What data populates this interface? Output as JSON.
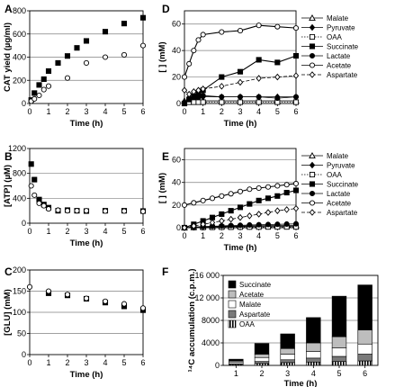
{
  "chart_data": [
    {
      "panel": "A",
      "type": "scatter",
      "xlabel": "Time (h)",
      "ylabel": "CAT yield (µg/ml)",
      "xlim": [
        0,
        6
      ],
      "ylim": [
        0,
        800
      ],
      "xticks": [
        0,
        1,
        2,
        3,
        4,
        5,
        6
      ],
      "yticks": [
        0,
        200,
        400,
        600,
        800
      ],
      "series": [
        {
          "marker": "filled-square",
          "x": [
            0.08,
            0.25,
            0.5,
            0.75,
            1,
            1.5,
            2,
            2.5,
            3,
            4,
            5,
            6
          ],
          "y": [
            30,
            90,
            160,
            210,
            280,
            350,
            410,
            480,
            540,
            620,
            690,
            740
          ]
        },
        {
          "marker": "open-circle",
          "x": [
            0.08,
            0.25,
            0.5,
            0.75,
            1,
            2,
            3,
            4,
            5,
            6
          ],
          "y": [
            20,
            40,
            70,
            120,
            150,
            220,
            350,
            400,
            420,
            500
          ]
        }
      ]
    },
    {
      "panel": "B",
      "type": "scatter",
      "xlabel": "Time (h)",
      "ylabel": "[ATP] (µM)",
      "xlim": [
        0,
        6
      ],
      "ylim": [
        0,
        1200
      ],
      "xticks": [
        0,
        1,
        2,
        3,
        4,
        5,
        6
      ],
      "yticks": [
        0,
        400,
        800,
        1200
      ],
      "series": [
        {
          "marker": "filled-square",
          "x": [
            0.08,
            0.25,
            0.5,
            0.75,
            1,
            1.5,
            2,
            2.5,
            3,
            4,
            5,
            6
          ],
          "y": [
            950,
            700,
            380,
            300,
            250,
            200,
            210,
            200,
            195,
            200,
            200,
            195
          ]
        },
        {
          "marker": "open-circle",
          "x": [
            0.08,
            0.25,
            0.5,
            0.75,
            1,
            1.5,
            2,
            2.5,
            3,
            4,
            5,
            6
          ],
          "y": [
            600,
            450,
            320,
            280,
            230,
            210,
            200,
            200,
            200,
            195,
            195,
            190
          ]
        }
      ]
    },
    {
      "panel": "C",
      "type": "scatter",
      "xlabel": "Time (h)",
      "ylabel": "[GLU] (mM)",
      "xlim": [
        0,
        6
      ],
      "ylim": [
        0,
        200
      ],
      "xticks": [
        0,
        1,
        2,
        3,
        4,
        5,
        6
      ],
      "yticks": [
        0,
        50,
        100,
        150,
        200
      ],
      "series": [
        {
          "marker": "filled-square",
          "x": [
            1,
            2,
            3,
            4,
            5,
            6
          ],
          "y": [
            145,
            140,
            132,
            123,
            114,
            105
          ]
        },
        {
          "marker": "open-circle",
          "x": [
            0,
            1,
            2,
            3,
            4,
            5,
            6
          ],
          "y": [
            160,
            150,
            142,
            133,
            126,
            120,
            110
          ]
        }
      ]
    },
    {
      "panel": "D",
      "type": "line",
      "xlabel": "Time (h)",
      "ylabel": "[ ] (mM)",
      "xlim": [
        0,
        6
      ],
      "ylim": [
        0,
        70
      ],
      "xticks": [
        0,
        1,
        2,
        3,
        4,
        5,
        6
      ],
      "yticks": [
        0,
        20,
        40,
        60
      ],
      "x": [
        0,
        0.25,
        0.5,
        0.75,
        1,
        2,
        3,
        4,
        5,
        6
      ],
      "series": [
        {
          "name": "Malate",
          "marker": "open-triangle",
          "style": "solid",
          "y": [
            2,
            2,
            2,
            2,
            2,
            2,
            2,
            2,
            2,
            2
          ]
        },
        {
          "name": "Pyruvate",
          "marker": "filled-diamond",
          "style": "solid",
          "y": [
            1,
            3,
            4,
            4,
            5,
            5,
            5,
            5,
            5,
            5
          ]
        },
        {
          "name": "OAA",
          "marker": "open-square",
          "style": "dotted",
          "y": [
            0,
            1,
            1,
            1,
            1,
            1,
            1,
            1,
            1,
            1
          ]
        },
        {
          "name": "Succinate",
          "marker": "filled-square",
          "style": "solid",
          "y": [
            0,
            3,
            5,
            8,
            10,
            20,
            24,
            33,
            31,
            36
          ]
        },
        {
          "name": "Lactate",
          "marker": "filled-circle",
          "style": "solid",
          "y": [
            0,
            4,
            6,
            5,
            6,
            5,
            5,
            5,
            4,
            5
          ]
        },
        {
          "name": "Acetate",
          "marker": "open-circle",
          "style": "solid",
          "y": [
            20,
            30,
            40,
            48,
            52,
            54,
            55,
            59,
            58,
            57
          ]
        },
        {
          "name": "Aspartate",
          "marker": "open-diamond",
          "style": "dashed",
          "y": [
            10,
            7,
            9,
            10,
            11,
            13,
            16,
            19,
            20,
            21
          ]
        }
      ]
    },
    {
      "panel": "E",
      "type": "line",
      "xlabel": "Time (h)",
      "ylabel": "[ ] (mM)",
      "xlim": [
        0,
        6
      ],
      "ylim": [
        0,
        70
      ],
      "xticks": [
        0,
        1,
        2,
        3,
        4,
        5,
        6
      ],
      "yticks": [
        0,
        20,
        40,
        60
      ],
      "x": [
        0,
        0.5,
        1,
        1.5,
        2,
        2.5,
        3,
        3.5,
        4,
        4.5,
        5,
        5.5,
        6
      ],
      "series": [
        {
          "name": "Malate",
          "marker": "open-triangle",
          "style": "solid",
          "y": [
            0,
            0.5,
            0.8,
            1,
            1.2,
            1.3,
            1.5,
            1.6,
            1.8,
            1.9,
            2,
            2,
            2
          ]
        },
        {
          "name": "Pyruvate",
          "marker": "filled-diamond",
          "style": "solid",
          "y": [
            0,
            0.3,
            0.5,
            0.7,
            0.8,
            1,
            1,
            1,
            1.1,
            1.1,
            1.2,
            1.2,
            1.2
          ]
        },
        {
          "name": "OAA",
          "marker": "open-square",
          "style": "dotted",
          "y": [
            0,
            0.2,
            0.3,
            0.4,
            0.5,
            0.5,
            0.6,
            0.6,
            0.6,
            0.7,
            0.7,
            0.7,
            0.7
          ]
        },
        {
          "name": "Succinate",
          "marker": "filled-square",
          "style": "solid",
          "y": [
            0,
            3,
            6,
            9,
            12,
            15,
            18,
            21,
            24,
            26,
            28,
            31,
            33
          ]
        },
        {
          "name": "Lactate",
          "marker": "filled-circle",
          "style": "solid",
          "y": [
            0,
            0.5,
            1,
            1.3,
            1.6,
            1.9,
            2.1,
            2.4,
            2.6,
            2.8,
            3,
            3.2,
            3.4
          ]
        },
        {
          "name": "Acetate",
          "marker": "open-circle",
          "style": "solid",
          "y": [
            20,
            22,
            24,
            26,
            28,
            30,
            32,
            34,
            35,
            36,
            37,
            38,
            39
          ]
        },
        {
          "name": "Aspartate",
          "marker": "open-diamond",
          "style": "dashed",
          "y": [
            0,
            1.5,
            3,
            4.5,
            6,
            7.5,
            9,
            10.5,
            12,
            13.5,
            15,
            16,
            17
          ]
        }
      ]
    },
    {
      "panel": "F",
      "type": "bar",
      "stacked": true,
      "xlabel": "Time (h)",
      "ylabel": "¹⁴C accumulation (c.p.m.)",
      "ylim": [
        0,
        16000
      ],
      "yticks": [
        0,
        4000,
        8000,
        12000,
        16000
      ],
      "ytick_labels": [
        "0",
        "4000",
        "8000",
        "12 000",
        "16 000"
      ],
      "categories": [
        "1",
        "2",
        "3",
        "4",
        "5",
        "6"
      ],
      "series": [
        {
          "name": "OAA",
          "pattern": "striped",
          "values": [
            150,
            350,
            500,
            600,
            700,
            800
          ]
        },
        {
          "name": "Aspartate",
          "pattern": "dark-gray",
          "values": [
            150,
            350,
            500,
            700,
            900,
            1200
          ]
        },
        {
          "name": "Malate",
          "pattern": "white",
          "values": [
            300,
            700,
            1000,
            1200,
            1500,
            1800
          ]
        },
        {
          "name": "Acetate",
          "pattern": "light-gray",
          "values": [
            200,
            600,
            1000,
            1500,
            2000,
            2500
          ]
        },
        {
          "name": "Succinate",
          "pattern": "black",
          "values": [
            300,
            1900,
            2600,
            4500,
            7200,
            8000
          ]
        }
      ],
      "legend_order": [
        "Succinate",
        "Acetate",
        "Malate",
        "Aspartate",
        "OAA"
      ]
    }
  ]
}
